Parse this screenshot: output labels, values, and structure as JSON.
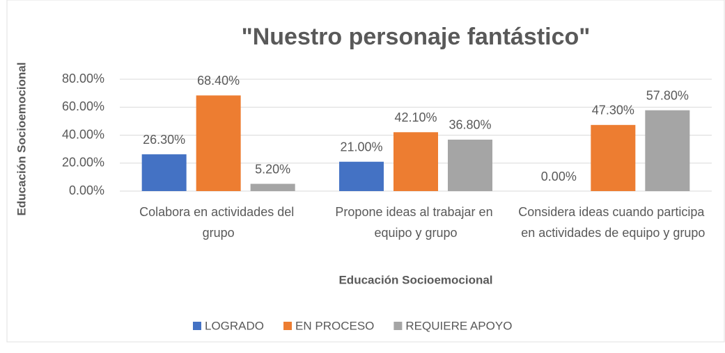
{
  "chart_data": {
    "type": "bar",
    "title": "\"Nuestro personaje fantástico\"",
    "x_label": "Educación Socioemocional",
    "y_label": "Educación Socioemocional",
    "categories": [
      "Colabora en actividades del grupo",
      "Propone ideas al trabajar en equipo y grupo",
      "Considera ideas cuando participa en actividades de equipo y grupo"
    ],
    "series": [
      {
        "name": "LOGRADO",
        "color": "#4472c4",
        "values": [
          26.3,
          21.0,
          0.0
        ],
        "value_labels": [
          "26.30%",
          "21.00%",
          "0.00%"
        ]
      },
      {
        "name": "EN PROCESO",
        "color": "#ed7d31",
        "values": [
          68.4,
          42.1,
          47.3
        ],
        "value_labels": [
          "68.40%",
          "42.10%",
          "47.30%"
        ]
      },
      {
        "name": "REQUIERE APOYO",
        "color": "#a5a5a5",
        "values": [
          5.2,
          36.8,
          57.8
        ],
        "value_labels": [
          "5.20%",
          "36.80%",
          "57.80%"
        ]
      }
    ],
    "ylim": [
      0,
      80
    ],
    "yticks": [
      {
        "value": 0,
        "label": "0.00%"
      },
      {
        "value": 20,
        "label": "20.00%"
      },
      {
        "value": 40,
        "label": "40.00%"
      },
      {
        "value": 60,
        "label": "60.00%"
      },
      {
        "value": 80,
        "label": "80.00%"
      }
    ],
    "grid": true,
    "legend": "bottom"
  }
}
